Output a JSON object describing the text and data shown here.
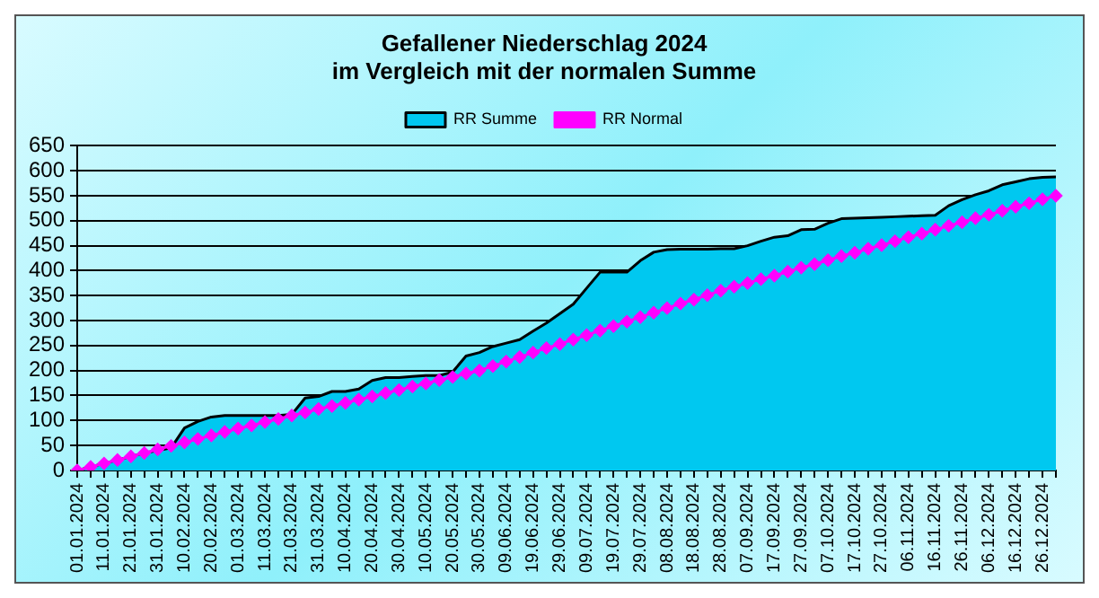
{
  "chart_data": {
    "type": "line",
    "title": "Gefallener Niederschlag 2024",
    "subtitle": "im Vergleich mit der normalen Summe",
    "categories": [
      "01.01.2024",
      null,
      "11.01.2024",
      null,
      "21.01.2024",
      null,
      "31.01.2024",
      null,
      "10.02.2024",
      null,
      "20.02.2024",
      null,
      "01.03.2024",
      null,
      "11.03.2024",
      null,
      "21.03.2024",
      null,
      "31.03.2024",
      null,
      "10.04.2024",
      null,
      "20.04.2024",
      null,
      "30.04.2024",
      null,
      "10.05.2024",
      null,
      "20.05.2024",
      null,
      "30.05.2024",
      null,
      "09.06.2024",
      null,
      "19.06.2024",
      null,
      "29.06.2024",
      null,
      "09.07.2024",
      null,
      "19.07.2024",
      null,
      "29.07.2024",
      null,
      "08.08.2024",
      null,
      "18.08.2024",
      null,
      "28.08.2024",
      null,
      "07.09.2024",
      null,
      "17.09.2024",
      null,
      "27.09.2024",
      null,
      "07.10.2024",
      null,
      "17.10.2024",
      null,
      "27.10.2024",
      null,
      "06.11.2024",
      null,
      "16.11.2024",
      null,
      "26.11.2024",
      null,
      "06.12.2024",
      null,
      "16.12.2024",
      null,
      "26.12.2024",
      null
    ],
    "series": [
      {
        "name": "RR Summe",
        "type": "area",
        "color": "#00c8f0",
        "marker": "none",
        "values": [
          0,
          7,
          14,
          21,
          28,
          35,
          40,
          45,
          85,
          98,
          107,
          110,
          110,
          110,
          110,
          110,
          112,
          145,
          148,
          158,
          158,
          163,
          180,
          186,
          186,
          188,
          190,
          190,
          197,
          229,
          236,
          248,
          255,
          262,
          279,
          295,
          314,
          333,
          365,
          397,
          397,
          397,
          420,
          437,
          442,
          443,
          443,
          443,
          444,
          444,
          450,
          459,
          467,
          470,
          482,
          483,
          495,
          504,
          505,
          506,
          507,
          508,
          509,
          510,
          511,
          530,
          542,
          552,
          560,
          572,
          578,
          584,
          587,
          588
        ]
      },
      {
        "name": "RR Normal",
        "type": "line",
        "color": "#ff00ff",
        "marker": "diamond",
        "values": [
          0,
          7,
          14,
          21,
          28,
          35,
          42,
          49,
          56,
          63,
          70,
          77,
          84,
          90,
          97,
          103,
          110,
          116,
          123,
          129,
          135,
          142,
          148,
          155,
          161,
          168,
          174,
          181,
          187,
          194,
          200,
          209,
          218,
          227,
          236,
          245,
          253,
          262,
          271,
          280,
          289,
          298,
          307,
          316,
          325,
          334,
          342,
          351,
          360,
          368,
          375,
          383,
          390,
          398,
          406,
          413,
          421,
          429,
          436,
          444,
          451,
          459,
          467,
          474,
          482,
          490,
          497,
          505,
          512,
          520,
          528,
          535,
          543,
          550
        ]
      }
    ],
    "ylim": [
      0,
      650
    ],
    "yticks": [
      0,
      50,
      100,
      150,
      200,
      250,
      300,
      350,
      400,
      450,
      500,
      550,
      600,
      650
    ],
    "grid": "y",
    "legend": "top"
  }
}
